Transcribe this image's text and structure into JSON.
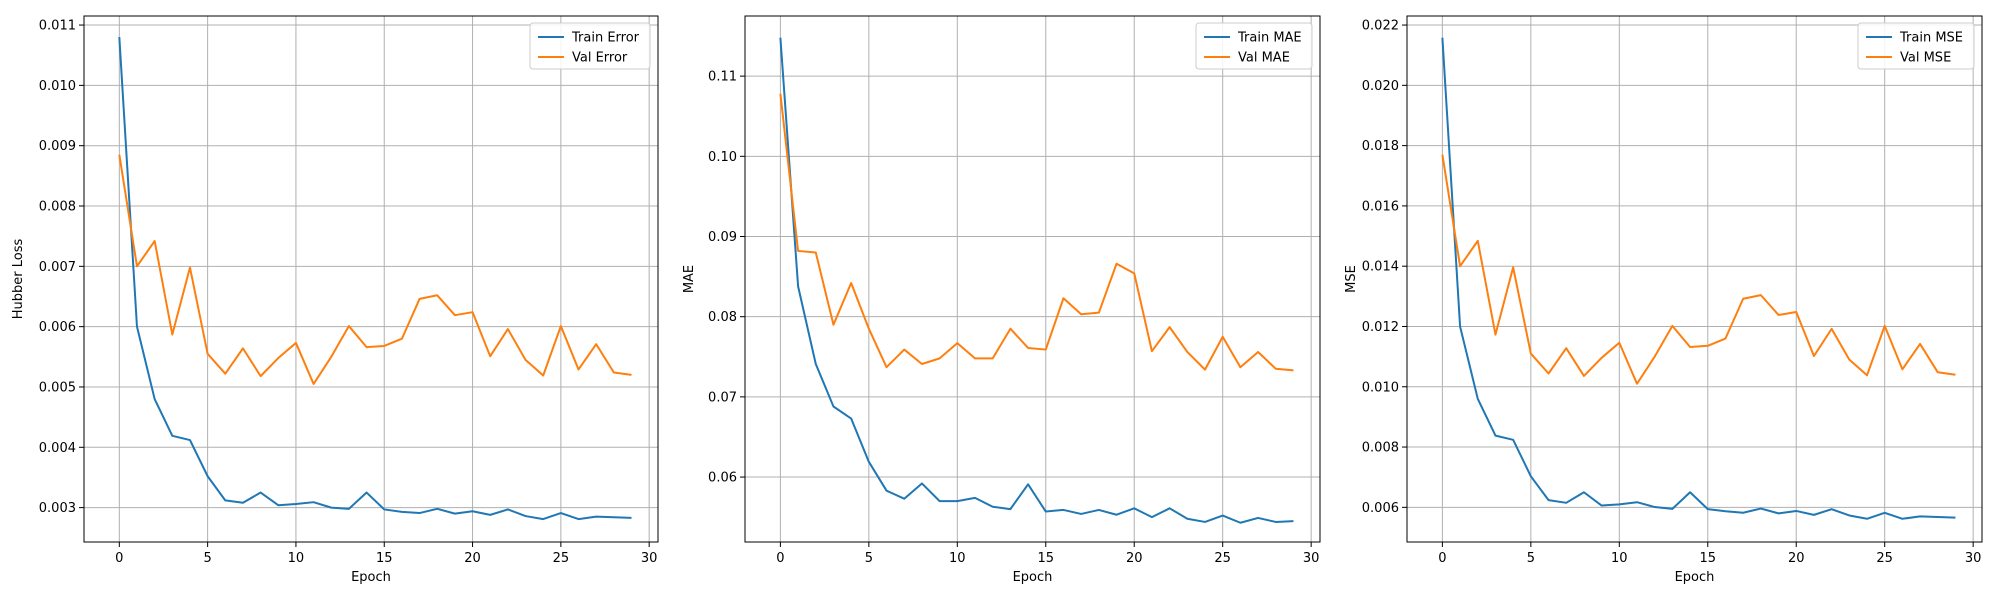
{
  "chart_data": [
    {
      "type": "line",
      "xlabel": "Epoch",
      "ylabel": "Hubber Loss",
      "xlim": [
        -2,
        30.5
      ],
      "ylim": [
        0.00243,
        0.01115
      ],
      "xticks": [
        0,
        5,
        10,
        15,
        20,
        25,
        30
      ],
      "xtick_labels": [
        "0",
        "5",
        "10",
        "15",
        "20",
        "25",
        "30"
      ],
      "yticks": [
        0.003,
        0.004,
        0.005,
        0.006,
        0.007,
        0.008,
        0.009,
        0.01,
        0.011
      ],
      "ytick_labels": [
        "0.003",
        "0.004",
        "0.005",
        "0.006",
        "0.007",
        "0.008",
        "0.009",
        "0.010",
        "0.011"
      ],
      "grid": true,
      "legend_position": "top-right",
      "x": [
        0,
        1,
        2,
        3,
        4,
        5,
        6,
        7,
        8,
        9,
        10,
        11,
        12,
        13,
        14,
        15,
        16,
        17,
        18,
        19,
        20,
        21,
        22,
        23,
        24,
        25,
        26,
        27,
        28,
        29
      ],
      "series": [
        {
          "name": "Train Error",
          "color": "#1f77b4",
          "values": [
            0.0108,
            0.006,
            0.0048,
            0.00419,
            0.00412,
            0.00352,
            0.00312,
            0.00308,
            0.00325,
            0.00304,
            0.00306,
            0.00309,
            0.003,
            0.00298,
            0.00325,
            0.00297,
            0.00293,
            0.00291,
            0.00298,
            0.0029,
            0.00294,
            0.00288,
            0.00297,
            0.00286,
            0.00281,
            0.00291,
            0.00281,
            0.00285,
            0.00284,
            0.00283
          ]
        },
        {
          "name": "Val Error",
          "color": "#ff7f0e",
          "values": [
            0.00885,
            0.007,
            0.00742,
            0.00587,
            0.00698,
            0.00555,
            0.00522,
            0.00564,
            0.00518,
            0.00548,
            0.00573,
            0.00505,
            0.0055,
            0.00601,
            0.00566,
            0.00568,
            0.0058,
            0.00646,
            0.00652,
            0.00619,
            0.00624,
            0.00551,
            0.00596,
            0.00545,
            0.00519,
            0.00601,
            0.00529,
            0.00571,
            0.00524,
            0.0052
          ]
        }
      ]
    },
    {
      "type": "line",
      "xlabel": "Epoch",
      "ylabel": "MAE",
      "xlim": [
        -2,
        30.5
      ],
      "ylim": [
        0.0519,
        0.1175
      ],
      "xticks": [
        0,
        5,
        10,
        15,
        20,
        25,
        30
      ],
      "xtick_labels": [
        "0",
        "5",
        "10",
        "15",
        "20",
        "25",
        "30"
      ],
      "yticks": [
        0.06,
        0.07,
        0.08,
        0.09,
        0.1,
        0.11
      ],
      "ytick_labels": [
        "0.06",
        "0.07",
        "0.08",
        "0.09",
        "0.10",
        "0.11"
      ],
      "grid": true,
      "legend_position": "top-right",
      "x": [
        0,
        1,
        2,
        3,
        4,
        5,
        6,
        7,
        8,
        9,
        10,
        11,
        12,
        13,
        14,
        15,
        16,
        17,
        18,
        19,
        20,
        21,
        22,
        23,
        24,
        25,
        26,
        27,
        28,
        29
      ],
      "series": [
        {
          "name": "Train MAE",
          "color": "#1f77b4",
          "values": [
            0.1148,
            0.0838,
            0.0741,
            0.0688,
            0.0673,
            0.0619,
            0.0583,
            0.0573,
            0.0592,
            0.057,
            0.057,
            0.0574,
            0.0563,
            0.056,
            0.0591,
            0.0557,
            0.0559,
            0.0554,
            0.0559,
            0.0553,
            0.0561,
            0.055,
            0.0561,
            0.0548,
            0.0544,
            0.0552,
            0.0543,
            0.0549,
            0.0544,
            0.0545
          ]
        },
        {
          "name": "Val MAE",
          "color": "#ff7f0e",
          "values": [
            0.1078,
            0.0882,
            0.088,
            0.079,
            0.0842,
            0.0785,
            0.0737,
            0.0759,
            0.0741,
            0.0748,
            0.0767,
            0.0748,
            0.0748,
            0.0785,
            0.0761,
            0.0759,
            0.0823,
            0.0803,
            0.0805,
            0.0866,
            0.0854,
            0.0757,
            0.0787,
            0.0756,
            0.0734,
            0.0775,
            0.0737,
            0.0756,
            0.0735,
            0.0733
          ]
        }
      ]
    },
    {
      "type": "line",
      "xlabel": "Epoch",
      "ylabel": "MSE",
      "xlim": [
        -2,
        30.5
      ],
      "ylim": [
        0.00485,
        0.0223
      ],
      "xticks": [
        0,
        5,
        10,
        15,
        20,
        25,
        30
      ],
      "xtick_labels": [
        "0",
        "5",
        "10",
        "15",
        "20",
        "25",
        "30"
      ],
      "yticks": [
        0.006,
        0.008,
        0.01,
        0.012,
        0.014,
        0.016,
        0.018,
        0.02,
        0.022
      ],
      "ytick_labels": [
        "0.006",
        "0.008",
        "0.010",
        "0.012",
        "0.014",
        "0.016",
        "0.018",
        "0.020",
        "0.022"
      ],
      "grid": true,
      "legend_position": "top-right",
      "x": [
        0,
        1,
        2,
        3,
        4,
        5,
        6,
        7,
        8,
        9,
        10,
        11,
        12,
        13,
        14,
        15,
        16,
        17,
        18,
        19,
        20,
        21,
        22,
        23,
        24,
        25,
        26,
        27,
        28,
        29
      ],
      "series": [
        {
          "name": "Train MSE",
          "color": "#1f77b4",
          "values": [
            0.02158,
            0.012,
            0.0096,
            0.00838,
            0.00824,
            0.00703,
            0.00624,
            0.00615,
            0.0065,
            0.00606,
            0.0061,
            0.00617,
            0.00601,
            0.00595,
            0.0065,
            0.00594,
            0.00587,
            0.00582,
            0.00596,
            0.0058,
            0.00588,
            0.00575,
            0.00594,
            0.00573,
            0.00562,
            0.00582,
            0.00562,
            0.0057,
            0.00568,
            0.00566
          ]
        },
        {
          "name": "Val MSE",
          "color": "#ff7f0e",
          "values": [
            0.0177,
            0.014,
            0.01484,
            0.01173,
            0.01396,
            0.0111,
            0.01044,
            0.01128,
            0.01036,
            0.01096,
            0.01146,
            0.0101,
            0.011,
            0.01202,
            0.01132,
            0.01136,
            0.0116,
            0.01292,
            0.01304,
            0.01238,
            0.01248,
            0.01102,
            0.01192,
            0.0109,
            0.01038,
            0.01202,
            0.01058,
            0.01142,
            0.01048,
            0.0104
          ]
        }
      ]
    }
  ]
}
